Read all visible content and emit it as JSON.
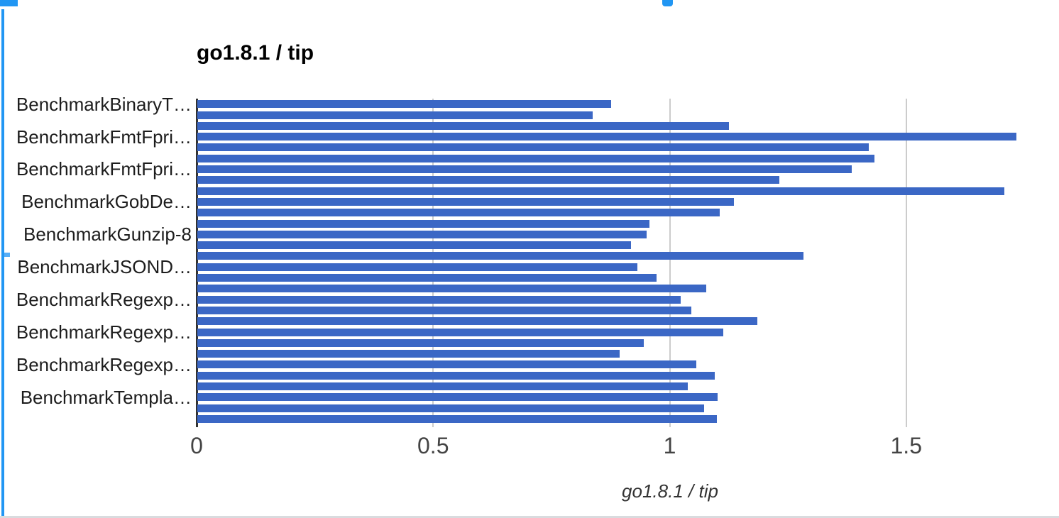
{
  "window": {
    "background": "#ffffff",
    "edge_color": "#2196f3",
    "edge_tick_color": "#56aef7",
    "bottom_edge_color": "#d9dbde"
  },
  "chart_data": {
    "type": "bar",
    "orientation": "horizontal",
    "title": "go1.8.1 / tip",
    "xlabel": "go1.8.1 / tip",
    "ylabel": "",
    "legend": "none",
    "grid": true,
    "bar_color": "#3b67c5",
    "axis_color": "#333333",
    "gridline_color": "#cccccc",
    "tick_label_color": "#444444",
    "category_label_color": "#1d1d1d",
    "title_color": "#000000",
    "xaxis_title_color": "#333333",
    "xticks": [
      0,
      0.5,
      1,
      1.5
    ],
    "xtick_labels": [
      "0",
      "0.5",
      "1",
      "1.5"
    ],
    "xlim_visible": [
      0,
      1.82
    ],
    "bars": [
      {
        "label": "BenchmarkBinaryT…",
        "value": 0.875
      },
      {
        "label": "",
        "value": 0.835
      },
      {
        "label": "",
        "value": 1.124
      },
      {
        "label": "BenchmarkFmtFpri…",
        "value": 1.731
      },
      {
        "label": "",
        "value": 1.419
      },
      {
        "label": "",
        "value": 1.431
      },
      {
        "label": "BenchmarkFmtFpri…",
        "value": 1.384
      },
      {
        "label": "",
        "value": 1.23
      },
      {
        "label": "",
        "value": 1.706
      },
      {
        "label": "BenchmarkGobDe…",
        "value": 1.135
      },
      {
        "label": "",
        "value": 1.104
      },
      {
        "label": "",
        "value": 0.956
      },
      {
        "label": "BenchmarkGunzip-8",
        "value": 0.95
      },
      {
        "label": "",
        "value": 0.917
      },
      {
        "label": "",
        "value": 1.281
      },
      {
        "label": "BenchmarkJSOND…",
        "value": 0.93
      },
      {
        "label": "",
        "value": 0.971
      },
      {
        "label": "",
        "value": 1.076
      },
      {
        "label": "BenchmarkRegexp…",
        "value": 1.022
      },
      {
        "label": "",
        "value": 1.045
      },
      {
        "label": "",
        "value": 1.184
      },
      {
        "label": "BenchmarkRegexp…",
        "value": 1.112
      },
      {
        "label": "",
        "value": 0.944
      },
      {
        "label": "",
        "value": 0.893
      },
      {
        "label": "BenchmarkRegexp…",
        "value": 1.055
      },
      {
        "label": "",
        "value": 1.094
      },
      {
        "label": "",
        "value": 1.037
      },
      {
        "label": "BenchmarkTempla…",
        "value": 1.1
      },
      {
        "label": "",
        "value": 1.072
      },
      {
        "label": "",
        "value": 1.098
      }
    ]
  }
}
